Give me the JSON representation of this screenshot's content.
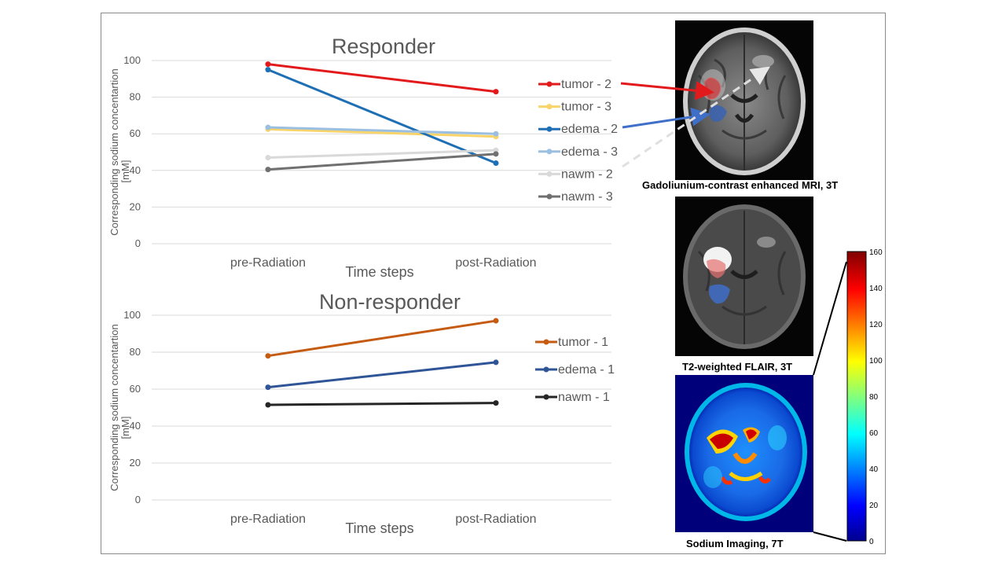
{
  "chart_data": [
    {
      "type": "line",
      "title": "Responder",
      "xlabel": "Time steps",
      "ylabel": "Corresponding sodium concentartion [mM]",
      "categories": [
        "pre-Radiation",
        "post-Radiation"
      ],
      "ylim": [
        0,
        100
      ],
      "yticks": [
        0,
        20,
        40,
        60,
        80,
        100
      ],
      "grid": true,
      "legend": "right",
      "series": [
        {
          "name": "tumor - 2",
          "values": [
            98,
            83
          ],
          "color": "#e31a1c"
        },
        {
          "name": "tumor - 3",
          "values": [
            62.5,
            58.5
          ],
          "color": "#f9d46b"
        },
        {
          "name": "edema - 2",
          "values": [
            95,
            44
          ],
          "color": "#1f6fb5"
        },
        {
          "name": "edema - 3",
          "values": [
            63.5,
            60
          ],
          "color": "#9bbfe0"
        },
        {
          "name": "nawm - 2",
          "values": [
            47,
            51
          ],
          "color": "#d9d9d9"
        },
        {
          "name": "nawm - 3",
          "values": [
            40.5,
            49
          ],
          "color": "#707070"
        }
      ]
    },
    {
      "type": "line",
      "title": "Non-responder",
      "xlabel": "Time steps",
      "ylabel": "Corresponding sodium concentartion [mM]",
      "categories": [
        "pre-Radiation",
        "post-Radiation"
      ],
      "ylim": [
        0,
        100
      ],
      "yticks": [
        0,
        20,
        40,
        60,
        80,
        100
      ],
      "grid": true,
      "legend": "right",
      "series": [
        {
          "name": "tumor - 1",
          "values": [
            78,
            97
          ],
          "color": "#c55a11"
        },
        {
          "name": "edema - 1",
          "values": [
            61,
            74.5
          ],
          "color": "#2f5597"
        },
        {
          "name": "nawm - 1",
          "values": [
            51.5,
            52.5
          ],
          "color": "#262626"
        }
      ]
    }
  ],
  "images": {
    "gado_caption": "Gadoliunium-contrast enhanced MRI, 3T",
    "flair_caption": "T2-weighted FLAIR, 3T",
    "sodium_caption": "Sodium Imaging, 7T"
  },
  "colorbar": {
    "ticks": [
      0,
      20,
      40,
      60,
      80,
      100,
      120,
      140,
      160
    ],
    "min": 0,
    "max": 160
  }
}
